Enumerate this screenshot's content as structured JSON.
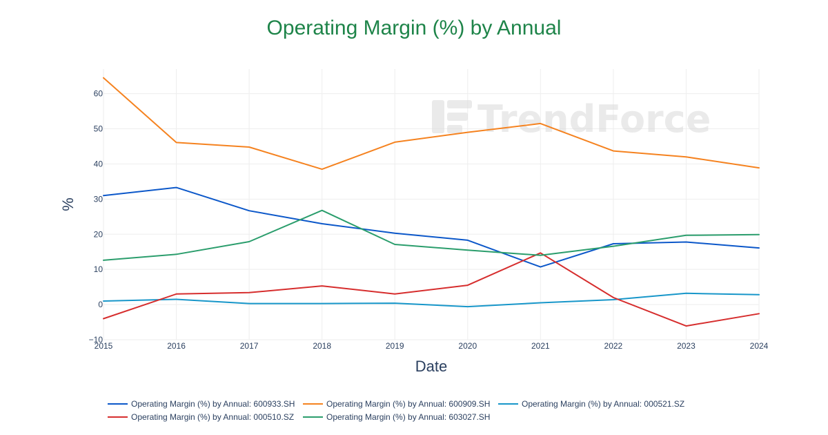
{
  "chart_data": {
    "type": "line",
    "title": "Operating Margin (%) by Annual",
    "xlabel": "Date",
    "ylabel": "%",
    "x": [
      "2015",
      "2016",
      "2017",
      "2018",
      "2019",
      "2020",
      "2021",
      "2022",
      "2023",
      "2024"
    ],
    "ylim": [
      -10,
      67
    ],
    "yticks": [
      -10,
      0,
      10,
      20,
      30,
      40,
      50,
      60
    ],
    "ytick_labels": [
      "−10",
      "0",
      "10",
      "20",
      "30",
      "40",
      "50",
      "60"
    ],
    "grid": true,
    "legend_position": "bottom",
    "series": [
      {
        "name": "Operating Margin (%) by Annual: 600933.SH",
        "color": "#0b57c9",
        "values": [
          31.0,
          33.3,
          26.7,
          23.0,
          20.3,
          18.3,
          10.7,
          17.3,
          17.8,
          16.1
        ]
      },
      {
        "name": "Operating Margin (%) by Annual: 600909.SH",
        "color": "#f5821f",
        "values": [
          64.5,
          46.1,
          44.8,
          38.5,
          46.2,
          49.0,
          51.5,
          43.7,
          42.0,
          38.9
        ]
      },
      {
        "name": "Operating Margin (%) by Annual: 000521.SZ",
        "color": "#1796c9",
        "values": [
          1.0,
          1.5,
          0.3,
          0.3,
          0.4,
          -0.6,
          0.5,
          1.4,
          3.2,
          2.8
        ]
      },
      {
        "name": "Operating Margin (%) by Annual: 000510.SZ",
        "color": "#d62d2d",
        "values": [
          -4.0,
          3.0,
          3.4,
          5.3,
          3.0,
          5.5,
          14.7,
          2.0,
          -6.1,
          -2.6
        ]
      },
      {
        "name": "Operating Margin (%) by Annual: 603027.SH",
        "color": "#2a9d6c",
        "values": [
          12.6,
          14.3,
          17.9,
          26.8,
          17.1,
          15.5,
          14.0,
          16.6,
          19.7,
          19.9
        ]
      }
    ]
  },
  "style": {
    "title_color": "#1e8449",
    "axis_color": "#2a3f5f",
    "grid_color": "#eeeeee"
  },
  "watermark": "TrendForce"
}
